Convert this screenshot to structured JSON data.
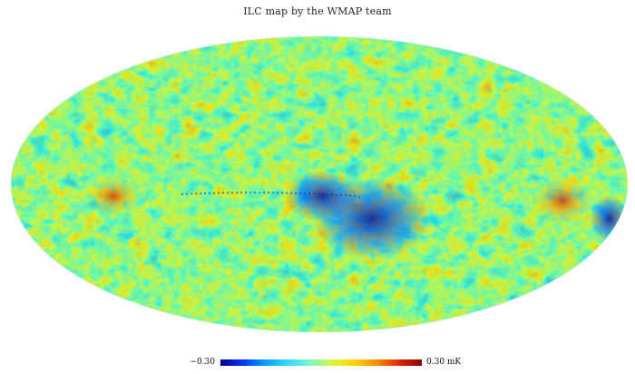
{
  "title": "ILC map by the WMAP team",
  "colorbar": {
    "min_label": "−0.30",
    "max_label": "0.30 mK",
    "colors": [
      "#00008b",
      "#0033ff",
      "#00a0ff",
      "#35d6ff",
      "#7cf7c8",
      "#d8f542",
      "#ffd400",
      "#ff8a00",
      "#e02400",
      "#8b0000"
    ]
  },
  "map": {
    "projection": "Mollweide",
    "background": "#ffffff"
  }
}
